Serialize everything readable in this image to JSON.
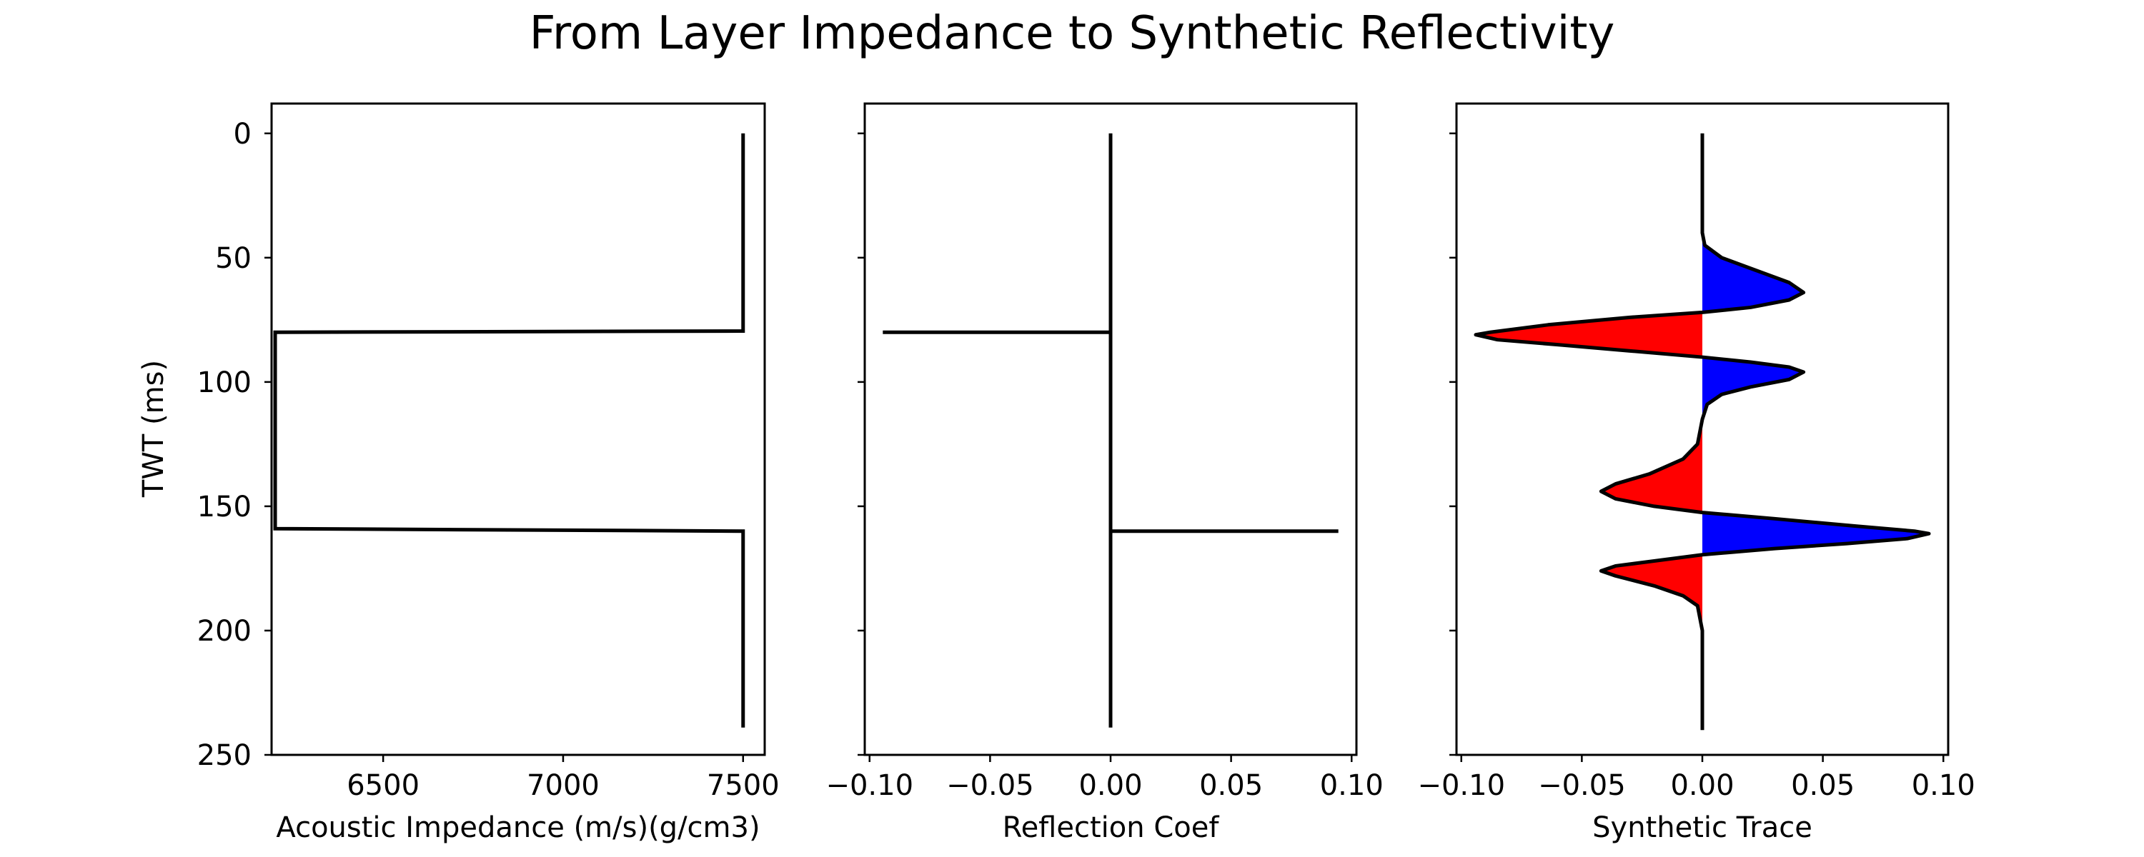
{
  "chart_data": {
    "title": "From Layer Impedance to Synthetic Reflectivity",
    "ylabel": "TWT (ms)",
    "shared_y": {
      "ylim": [
        250,
        -12
      ],
      "ticks": [
        0,
        50,
        100,
        150,
        200,
        250
      ]
    },
    "colors": {
      "line": "#000000",
      "positive_fill": "#0000ff",
      "negative_fill": "#ff0000"
    },
    "panels": [
      {
        "type": "line",
        "xlabel": "Acoustic Impedance (m/s)(g/cm3)",
        "xlim": [
          6190,
          7560
        ],
        "xticks": [
          6500,
          7000,
          7500
        ],
        "xtick_labels": [
          "6500",
          "7000",
          "7500"
        ],
        "series": [
          {
            "points": [
              [
                7500,
                0
              ],
              [
                7500,
                79.5
              ],
              [
                6200,
                80
              ],
              [
                6200,
                159
              ],
              [
                7500,
                160
              ],
              [
                7500,
                239
              ]
            ]
          }
        ]
      },
      {
        "type": "line",
        "xlabel": "Reflection Coef",
        "xlim": [
          -0.102,
          0.102
        ],
        "xticks": [
          -0.1,
          -0.05,
          0.0,
          0.05,
          0.1
        ],
        "xtick_labels": [
          "−0.10",
          "−0.05",
          "0.00",
          "0.05",
          "0.10"
        ],
        "series": [
          {
            "points": [
              [
                0,
                0
              ],
              [
                0,
                80
              ],
              [
                -0.0945,
                80
              ],
              [
                0,
                80
              ],
              [
                0,
                160
              ],
              [
                0.0945,
                160
              ],
              [
                0,
                160
              ],
              [
                0,
                239
              ]
            ]
          }
        ]
      },
      {
        "type": "area",
        "xlabel": "Synthetic Trace",
        "xlim": [
          -0.102,
          0.102
        ],
        "xticks": [
          -0.1,
          -0.05,
          0.0,
          0.05,
          0.1
        ],
        "xtick_labels": [
          "−0.10",
          "−0.05",
          "0.00",
          "0.05",
          "0.10"
        ],
        "trace": [
          [
            0,
            0
          ],
          [
            0,
            40
          ],
          [
            0.001,
            45
          ],
          [
            0.008,
            50
          ],
          [
            0.022,
            55
          ],
          [
            0.036,
            60
          ],
          [
            0.042,
            64
          ],
          [
            0.036,
            67
          ],
          [
            0.02,
            70
          ],
          [
            0,
            72
          ],
          [
            -0.03,
            74
          ],
          [
            -0.064,
            77
          ],
          [
            -0.088,
            80
          ],
          [
            -0.094,
            81
          ],
          [
            -0.085,
            83
          ],
          [
            -0.06,
            85
          ],
          [
            -0.03,
            87.5
          ],
          [
            0,
            90
          ],
          [
            0.02,
            92
          ],
          [
            0.036,
            94
          ],
          [
            0.042,
            96
          ],
          [
            0.036,
            99
          ],
          [
            0.02,
            102
          ],
          [
            0.008,
            105
          ],
          [
            0.002,
            109
          ],
          [
            0,
            115
          ],
          [
            -0.002,
            125
          ],
          [
            -0.008,
            131
          ],
          [
            -0.022,
            137
          ],
          [
            -0.036,
            141
          ],
          [
            -0.042,
            144
          ],
          [
            -0.036,
            147
          ],
          [
            -0.02,
            150
          ],
          [
            0,
            152.5
          ],
          [
            0.03,
            155
          ],
          [
            0.064,
            158
          ],
          [
            0.088,
            160
          ],
          [
            0.094,
            161
          ],
          [
            0.085,
            163
          ],
          [
            0.06,
            165
          ],
          [
            0.03,
            167
          ],
          [
            0,
            169.5
          ],
          [
            -0.02,
            172
          ],
          [
            -0.036,
            174
          ],
          [
            -0.042,
            176
          ],
          [
            -0.036,
            178
          ],
          [
            -0.02,
            182
          ],
          [
            -0.008,
            186
          ],
          [
            -0.002,
            190
          ],
          [
            0,
            200
          ],
          [
            0,
            240
          ]
        ]
      }
    ]
  }
}
